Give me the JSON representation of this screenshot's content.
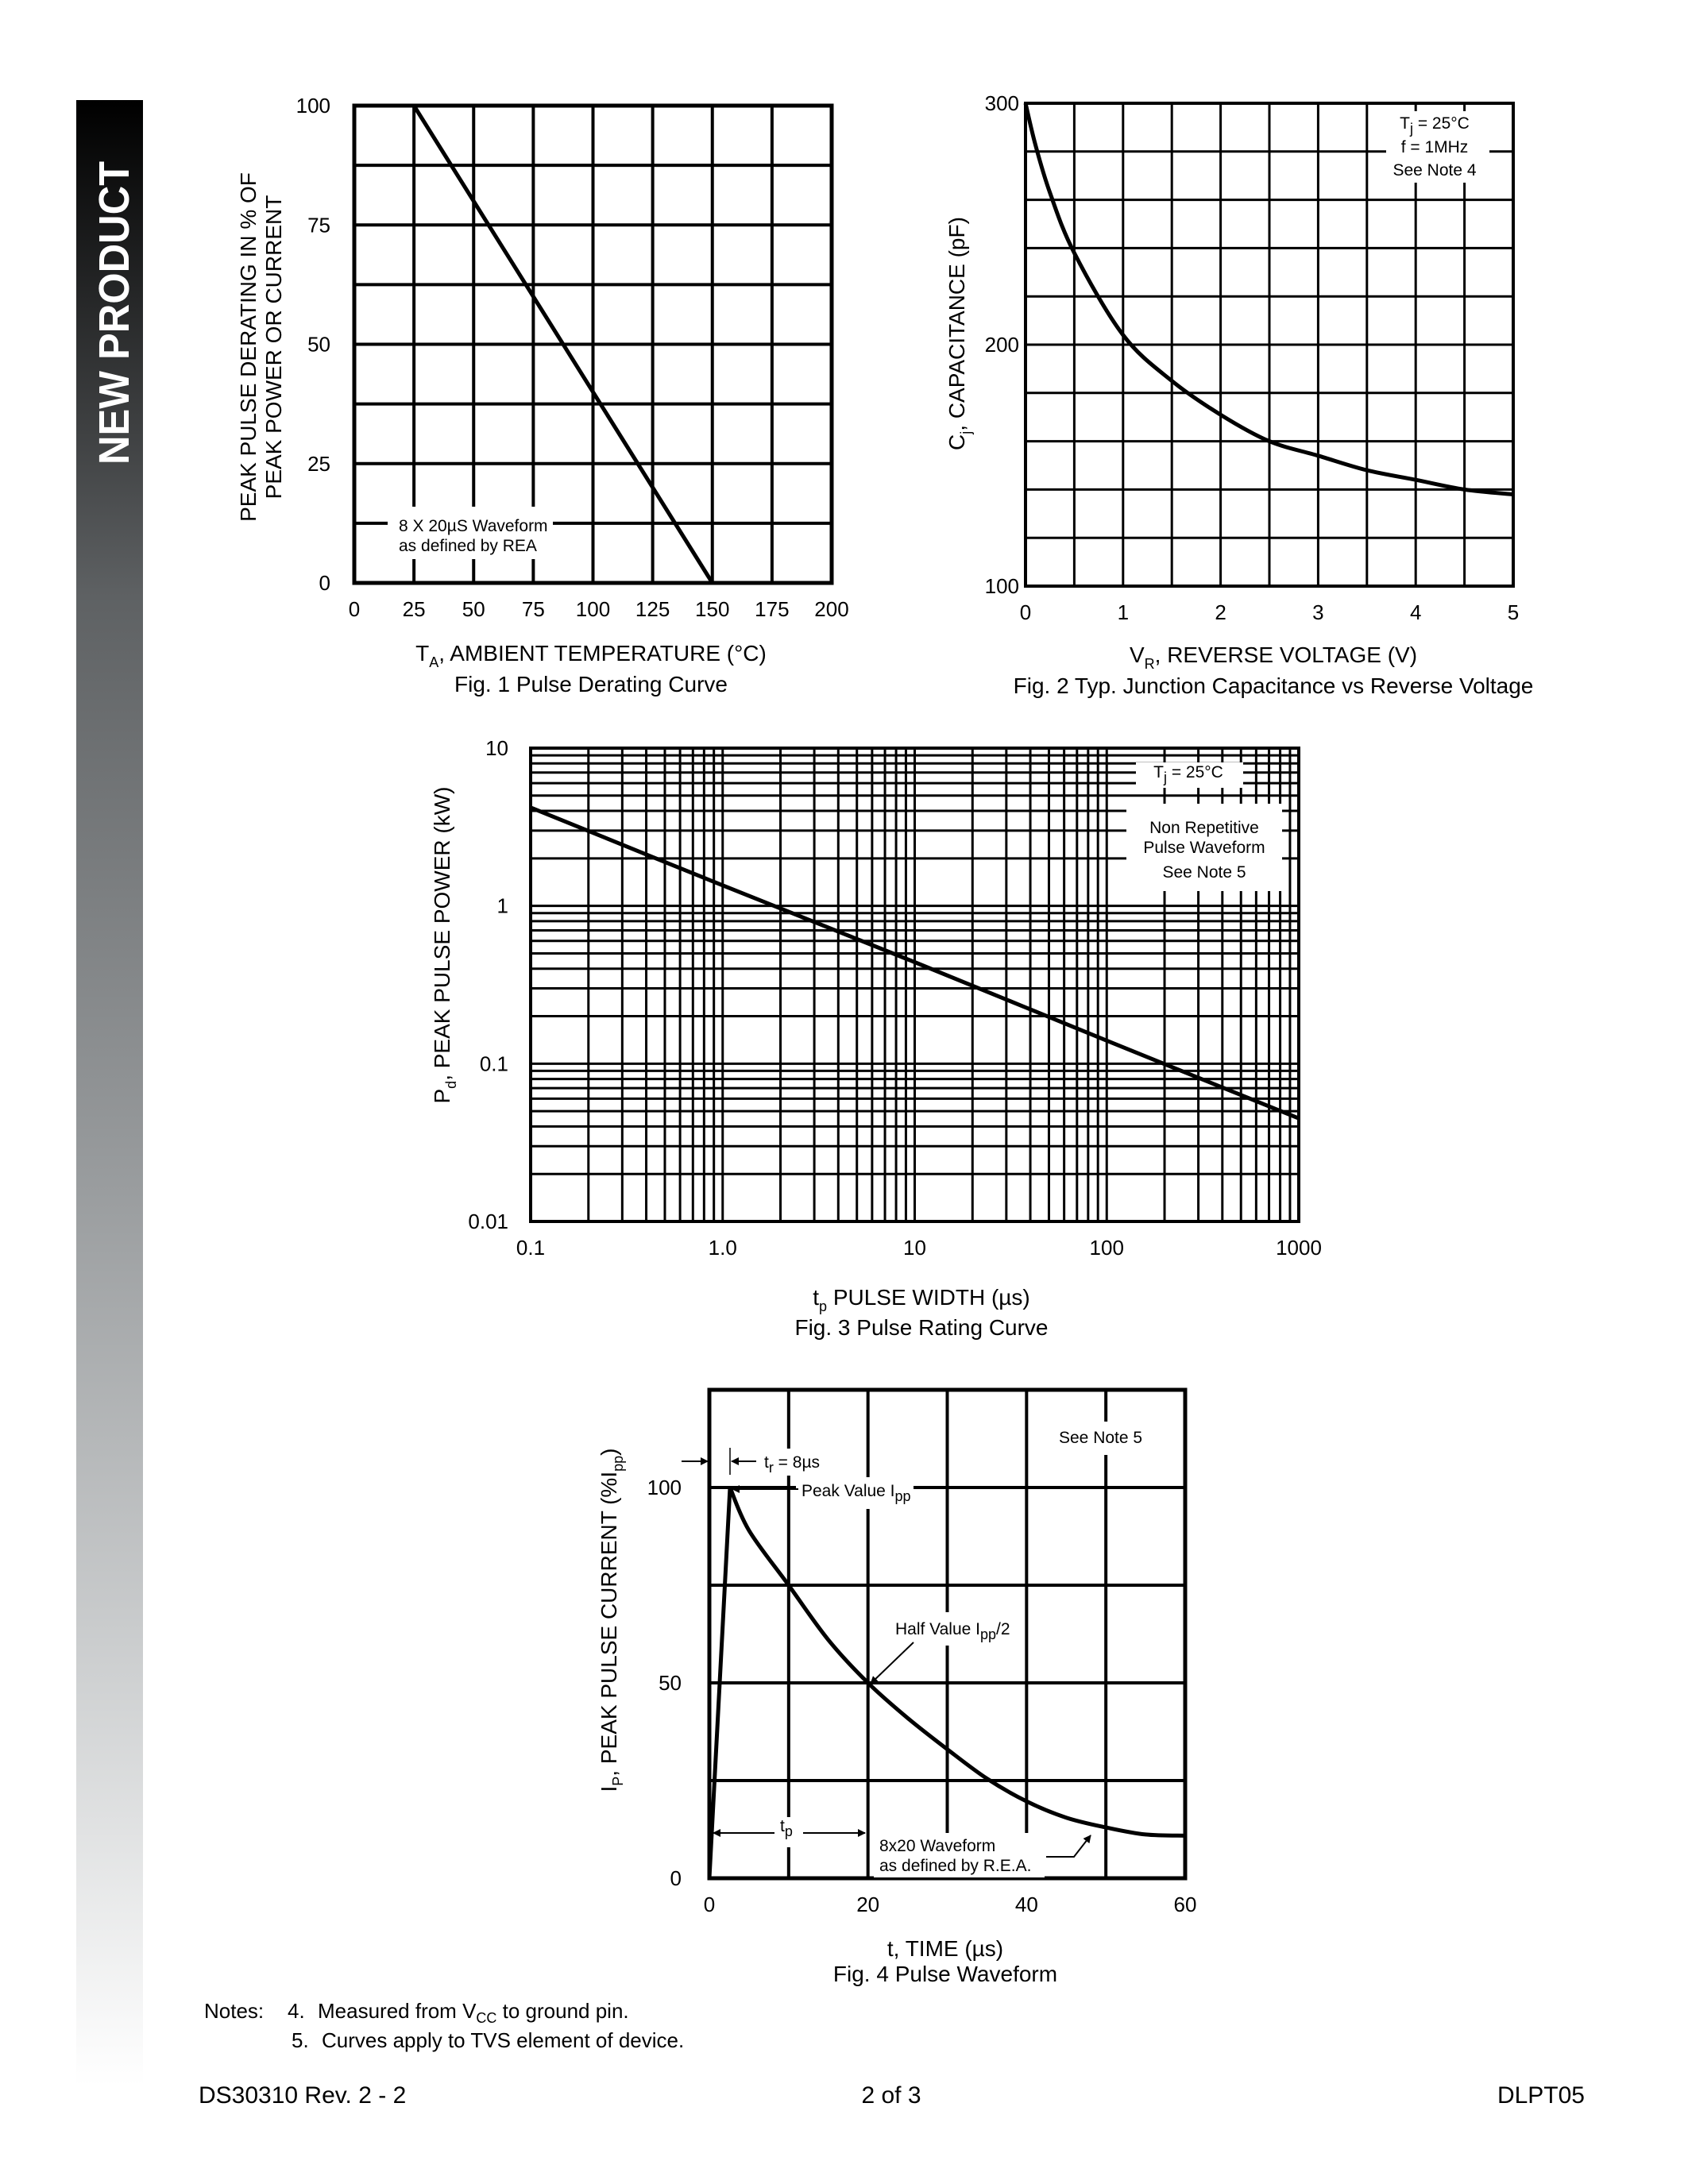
{
  "sidebar": {
    "label": "NEW PRODUCT"
  },
  "chart_data": [
    {
      "type": "line",
      "title": "Fig. 1  Pulse Derating Curve",
      "xlabel": [
        "T",
        "A",
        ", AMBIENT TEMPERATURE (°C)"
      ],
      "ylabel": [
        "PEAK PULSE DERATING IN % OF",
        "PEAK POWER OR CURRENT"
      ],
      "xlim": [
        0,
        200
      ],
      "ylim": [
        0,
        100
      ],
      "grid": true,
      "grid_x_step": 25,
      "grid_y_step": 12.5,
      "xticks": [
        0,
        25,
        50,
        75,
        100,
        125,
        150,
        175,
        200
      ],
      "xtick_labels": [
        "0",
        "25",
        "50",
        "75",
        "100",
        "125",
        "150",
        "175",
        "200"
      ],
      "yticks": [
        0,
        25,
        50,
        75,
        100
      ],
      "ytick_labels": [
        "0",
        "25",
        "50",
        "75",
        "100"
      ],
      "x": [
        0,
        25,
        150
      ],
      "y": [
        100,
        100,
        0
      ],
      "annotation": [
        "8 X 20µS Waveform",
        "as defined by REA"
      ]
    },
    {
      "type": "line",
      "title": "Fig. 2  Typ. Junction Capacitance vs Reverse Voltage",
      "xlabel": [
        "V",
        "R",
        ", REVERSE VOLTAGE (V)"
      ],
      "ylabel": [
        "C",
        "j",
        ", CAPACITANCE (pF)"
      ],
      "xlim": [
        0,
        5
      ],
      "ylim": [
        100,
        300
      ],
      "grid": true,
      "grid_x_step": 0.5,
      "grid_y_step": 20,
      "xticks": [
        0,
        1,
        2,
        3,
        4,
        5
      ],
      "xtick_labels": [
        "0",
        "1",
        "2",
        "3",
        "4",
        "5"
      ],
      "yticks": [
        100,
        200,
        300
      ],
      "ytick_labels": [
        "100",
        "200",
        "300"
      ],
      "x": [
        0,
        0.1,
        0.25,
        0.5,
        1,
        1.5,
        2,
        2.5,
        3,
        3.5,
        4,
        4.5,
        5
      ],
      "y": [
        300,
        283,
        263,
        238,
        204,
        185,
        171,
        160,
        154,
        148,
        144,
        140,
        138
      ],
      "annotation": {
        "tj": [
          "T",
          "j",
          " = 25°C"
        ],
        "f": "f = 1MHz",
        "note": "See Note 4"
      }
    },
    {
      "type": "line",
      "title": "Fig. 3 Pulse Rating Curve",
      "xlabel": [
        "t",
        "p",
        " PULSE WIDTH (µs)"
      ],
      "ylabel": [
        "P",
        "d",
        ", PEAK PULSE POWER (kW)"
      ],
      "xscale": "log",
      "yscale": "log",
      "xlim": [
        0.1,
        1000
      ],
      "ylim": [
        0.01,
        10
      ],
      "grid": true,
      "xticks": [
        0.1,
        1,
        10,
        100,
        1000
      ],
      "xtick_labels": [
        "0.1",
        "1.0",
        "10",
        "100",
        "1000"
      ],
      "yticks": [
        0.01,
        0.1,
        1,
        10
      ],
      "ytick_labels": [
        "0.01",
        "0.1",
        "1",
        "10"
      ],
      "x": [
        0.1,
        1,
        10,
        100,
        1000
      ],
      "y": [
        4.2,
        1.35,
        0.44,
        0.14,
        0.045
      ],
      "annotation": {
        "tj": [
          "T",
          "j",
          " = 25°C"
        ],
        "lines": [
          "Non Repetitive",
          "Pulse Waveform",
          "See Note 5"
        ]
      }
    },
    {
      "type": "line",
      "title": "Fig. 4  Pulse Waveform",
      "xlabel": [
        "t, TIME (µs)"
      ],
      "ylabel": [
        "I",
        "P",
        ", PEAK PULSE CURRENT (%I",
        "pp",
        ")"
      ],
      "xlim": [
        0,
        60
      ],
      "ylim": [
        0,
        125
      ],
      "grid": true,
      "grid_x_step": 10,
      "grid_y_step": 25,
      "xticks": [
        0,
        20,
        40,
        60
      ],
      "xtick_labels": [
        "0",
        "20",
        "40",
        "60"
      ],
      "yticks": [
        0,
        50,
        100
      ],
      "ytick_labels": [
        "0",
        "50",
        "100"
      ],
      "x": [
        0,
        2.6,
        5,
        10,
        15,
        20,
        25,
        30,
        35,
        40,
        45,
        50,
        55,
        60
      ],
      "y": [
        0,
        100,
        89,
        75,
        61,
        50,
        41,
        33,
        25.5,
        19.7,
        15.5,
        13,
        11.2,
        10.9
      ],
      "annotation": {
        "note": "See Note 5",
        "rise": [
          "t",
          "r",
          " = 8µs"
        ],
        "peak": [
          "Peak Value I",
          "pp"
        ],
        "half": [
          "Half Value I",
          "pp",
          "/2"
        ],
        "tp": [
          "t",
          "p"
        ],
        "waveform": [
          "8x20 Waveform",
          "as defined by R.E.A."
        ]
      }
    }
  ],
  "notes": {
    "heading": "Notes:",
    "items": [
      {
        "num": "4.",
        "text": [
          "Measured from V",
          "CC",
          " to ground pin."
        ]
      },
      {
        "num": "5.",
        "text": [
          "Curves apply to TVS element of device."
        ]
      }
    ]
  },
  "footer": {
    "doc": "DS30310 Rev. 2 - 2",
    "page": "2 of 3",
    "part": "DLPT05"
  }
}
